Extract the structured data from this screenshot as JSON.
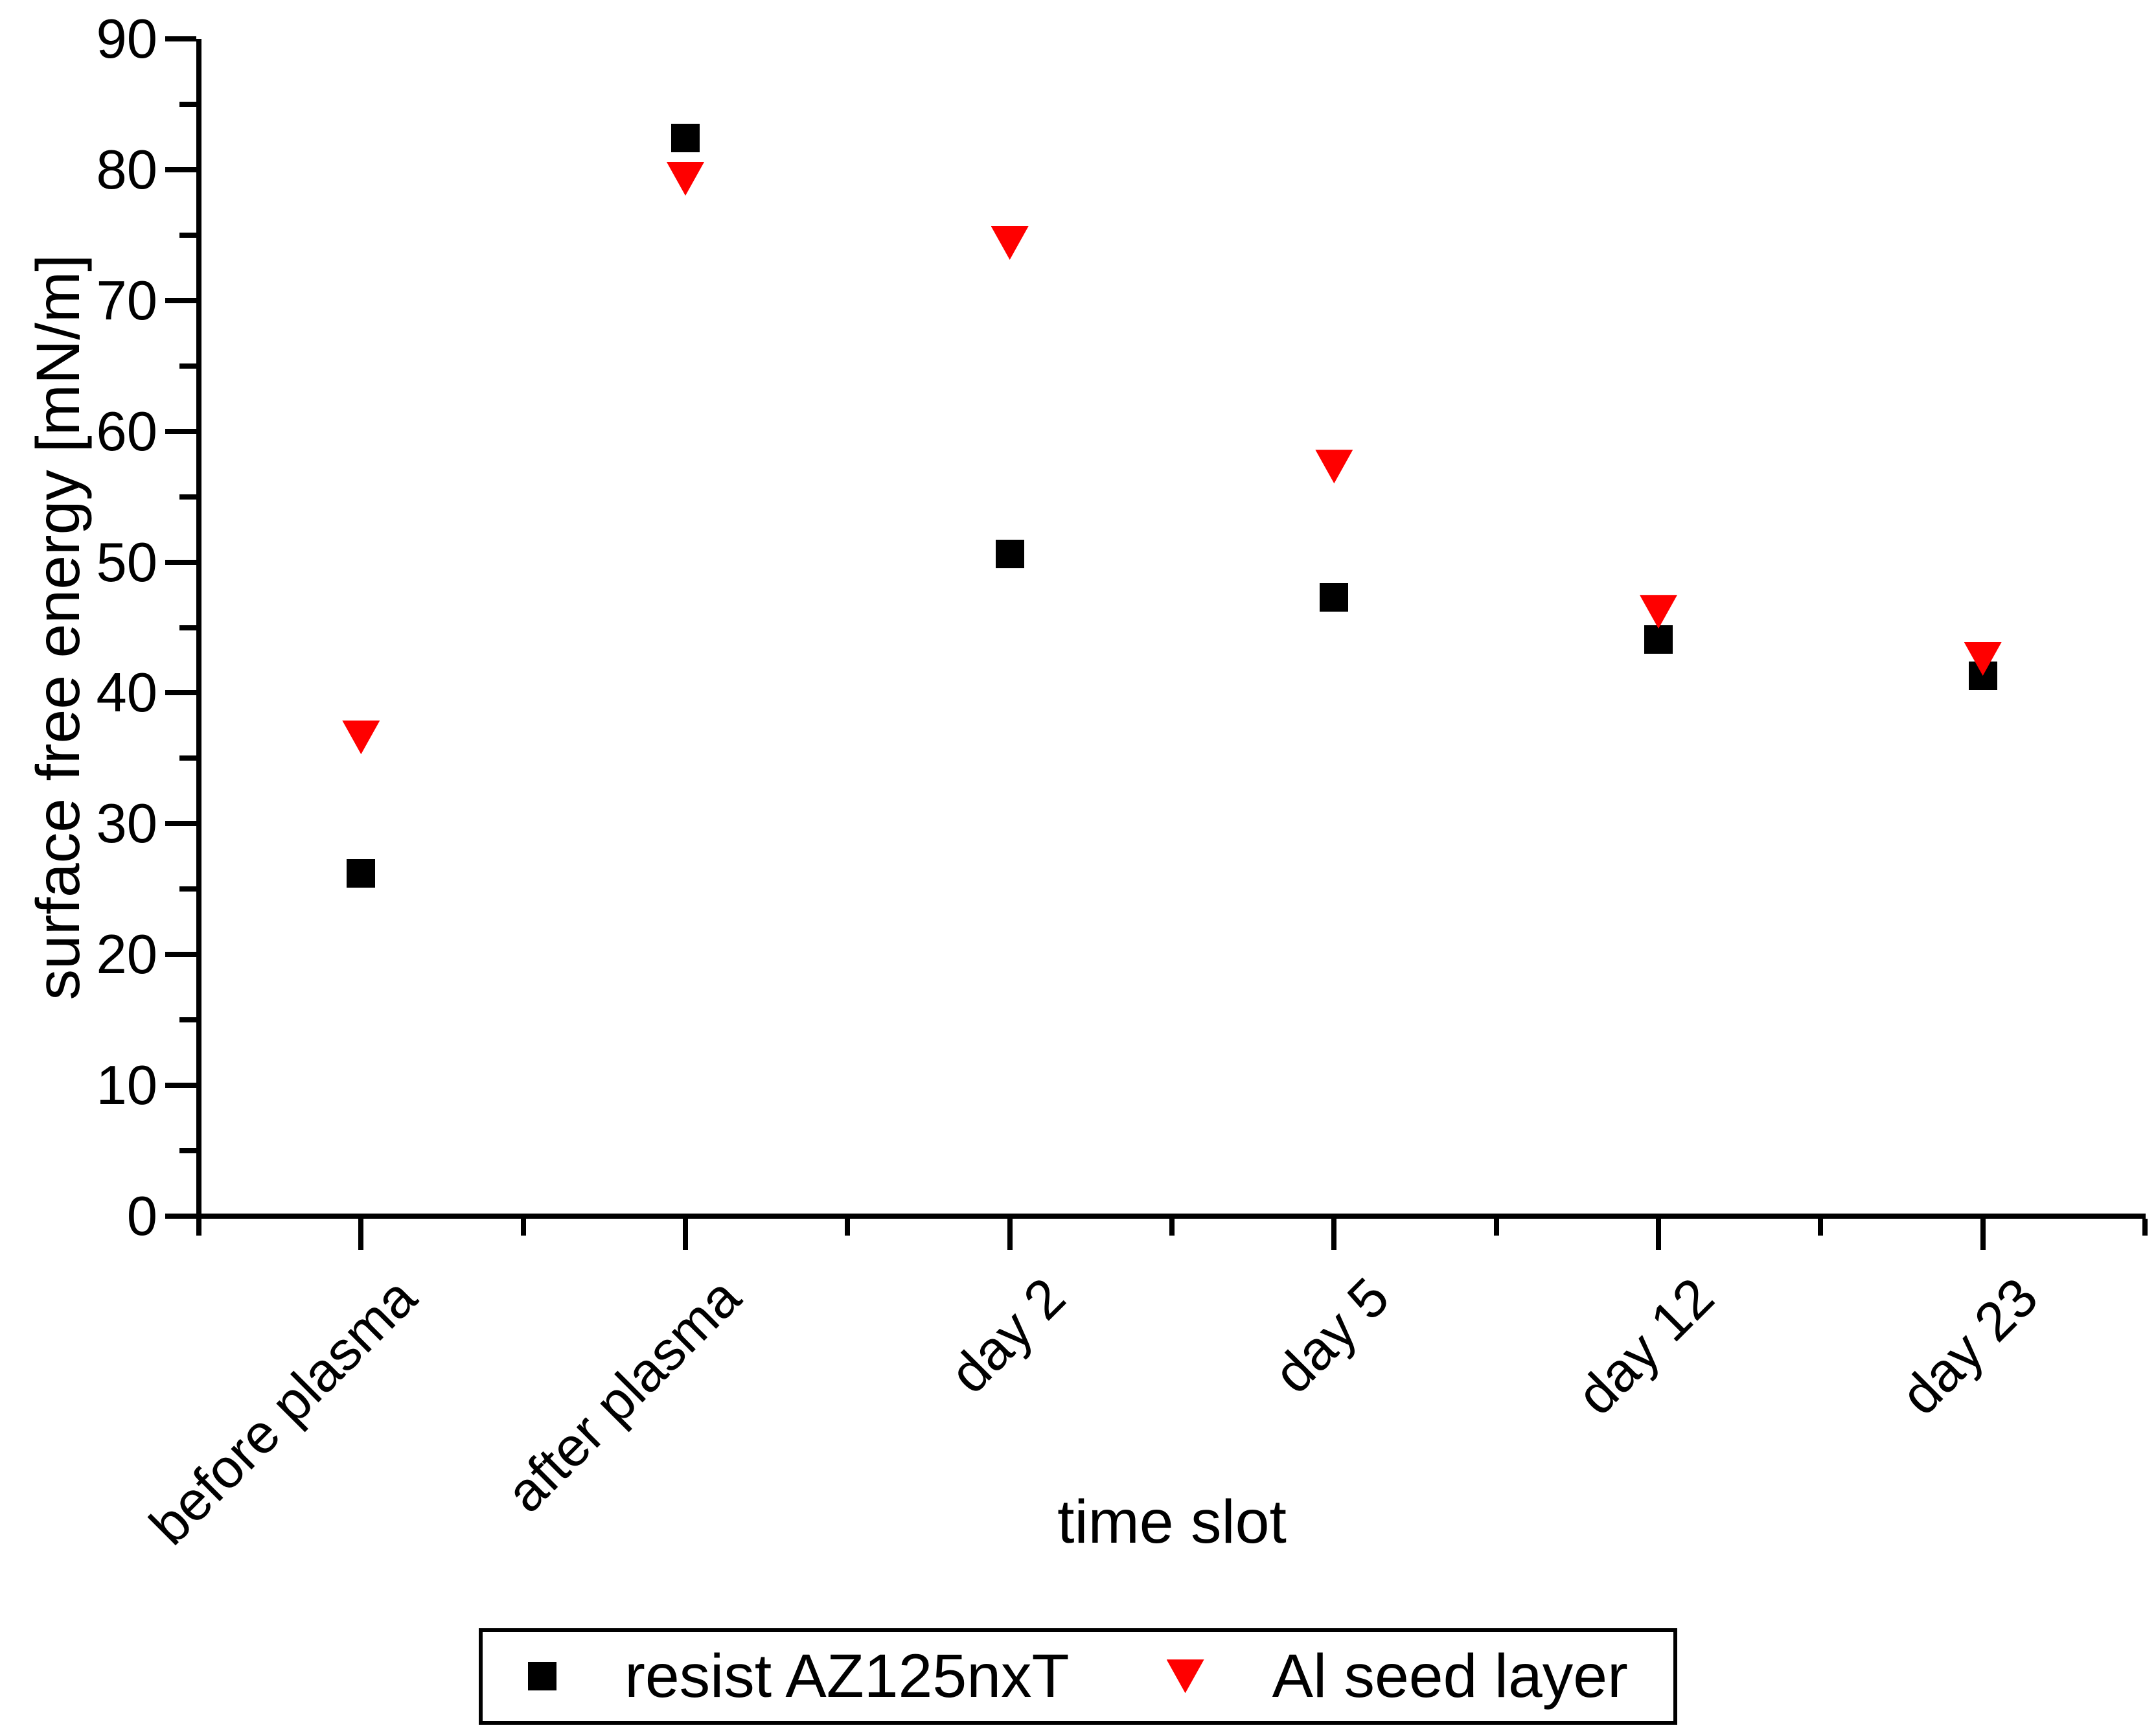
{
  "figure": {
    "background": "#ffffff",
    "text_color": "#000000"
  },
  "chart_data": {
    "type": "scatter",
    "title": "",
    "xlabel": "time slot",
    "ylabel": "surface free energy [mN/m]",
    "categories": [
      "before plasma",
      "after plasma",
      "day 2",
      "day 5",
      "day 12",
      "day 23"
    ],
    "series": [
      {
        "name": "resist AZ125nxT",
        "marker": "square",
        "color": "#000000",
        "values": [
          26.2,
          82.4,
          50.6,
          47.3,
          44.1,
          41.3
        ]
      },
      {
        "name": "Al seed layer",
        "marker": "triangle-down",
        "color": "#ff0000",
        "values": [
          36.6,
          79.3,
          74.4,
          57.3,
          46.2,
          42.6
        ]
      }
    ],
    "ylim": [
      0,
      90
    ],
    "y_major_step": 10,
    "y_minor_step": 5,
    "x_tick_label_rotation_deg": 45,
    "grid": false,
    "legend_position": "bottom-center"
  },
  "legend": {
    "items": [
      {
        "label": "resist AZ125nxT",
        "marker": "square",
        "color": "#000000"
      },
      {
        "label": "Al seed layer",
        "marker": "triangle-down",
        "color": "#ff0000"
      }
    ]
  }
}
